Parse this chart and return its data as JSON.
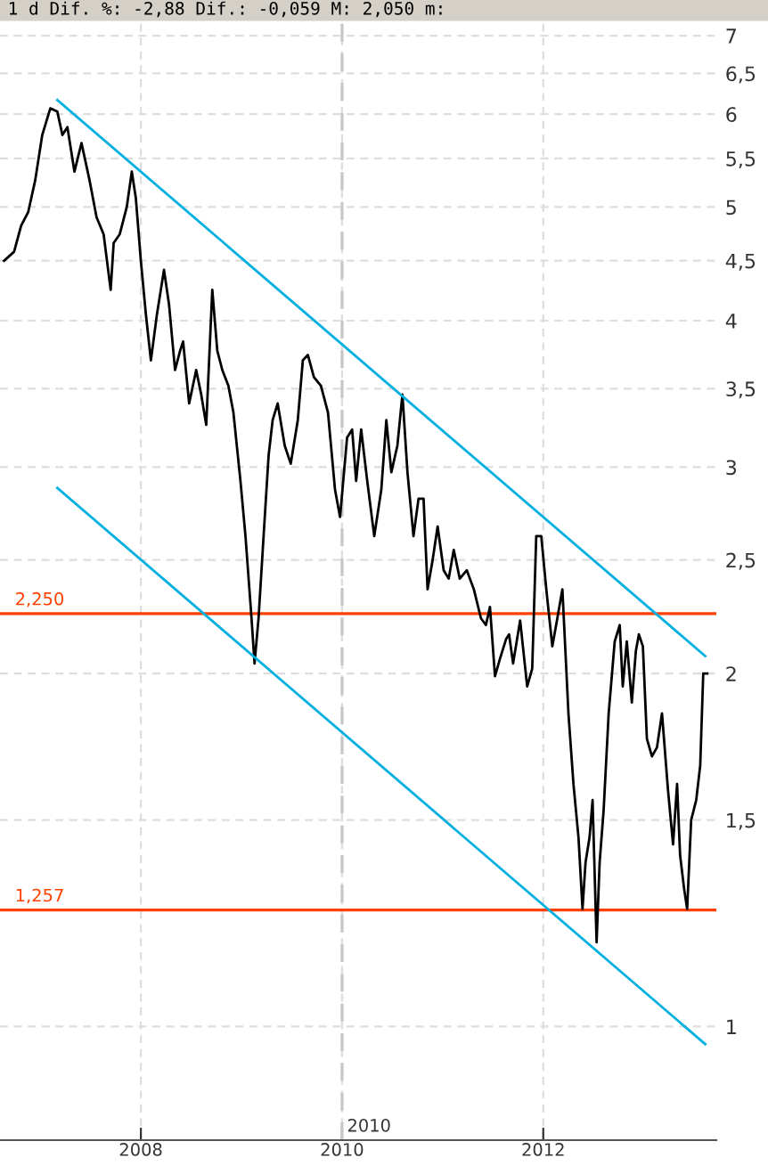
{
  "chart_data": {
    "type": "line",
    "title": "1 d Dif. %: -2,88 Dif.: -0,059 M: 2,050 m:",
    "log": "y",
    "grid": true,
    "legend": false,
    "marker": "none",
    "line_style": "solid",
    "xlim": [
      2006.6,
      2013.72
    ],
    "ylim": [
      0.8,
      7.2
    ],
    "xticks": [
      2008,
      2010,
      2012
    ],
    "yticks": [
      1,
      {
        "value": 1.5,
        "label": "1,5"
      },
      2,
      {
        "value": 2.5,
        "label": "2,5"
      },
      3,
      {
        "value": 3.5,
        "label": "3,5"
      },
      4,
      {
        "value": 4.5,
        "label": "4,5"
      },
      5,
      {
        "value": 5.5,
        "label": "5,5"
      },
      6,
      {
        "value": 6.5,
        "label": "6,5"
      },
      7
    ],
    "series": [
      {
        "color": "#000000",
        "x": [
          2006.64,
          2006.74,
          2006.81,
          2006.88,
          2006.95,
          2007.02,
          2007.1,
          2007.17,
          2007.22,
          2007.27,
          2007.34,
          2007.41,
          2007.49,
          2007.56,
          2007.63,
          2007.7,
          2007.73,
          2007.79,
          2007.86,
          2007.91,
          2007.95,
          2008.0,
          2008.05,
          2008.1,
          2008.16,
          2008.23,
          2008.28,
          2008.34,
          2008.39,
          2008.42,
          2008.48,
          2008.55,
          2008.6,
          2008.65,
          2008.71,
          2008.76,
          2008.81,
          2008.87,
          2008.92,
          2008.99,
          2009.04,
          2009.1,
          2009.13,
          2009.17,
          2009.22,
          2009.27,
          2009.31,
          2009.36,
          2009.43,
          2009.49,
          2009.56,
          2009.61,
          2009.66,
          2009.72,
          2009.79,
          2009.86,
          2009.93,
          2009.98,
          2010.05,
          2010.1,
          2010.14,
          2010.19,
          2010.25,
          2010.32,
          2010.39,
          2010.44,
          2010.49,
          2010.55,
          2010.6,
          2010.65,
          2010.71,
          2010.76,
          2010.81,
          2010.85,
          2010.9,
          2010.95,
          2011.01,
          2011.06,
          2011.11,
          2011.17,
          2011.24,
          2011.31,
          2011.38,
          2011.43,
          2011.47,
          2011.52,
          2011.57,
          2011.63,
          2011.66,
          2011.7,
          2011.77,
          2011.84,
          2011.89,
          2011.93,
          2011.98,
          2012.03,
          2012.09,
          2012.14,
          2012.19,
          2012.25,
          2012.3,
          2012.35,
          2012.39,
          2012.42,
          2012.46,
          2012.49,
          2012.53,
          2012.56,
          2012.6,
          2012.65,
          2012.71,
          2012.76,
          2012.79,
          2012.83,
          2012.88,
          2012.92,
          2012.95,
          2012.99,
          2013.03,
          2013.08,
          2013.13,
          2013.18,
          2013.24,
          2013.29,
          2013.33,
          2013.36,
          2013.4,
          2013.43,
          2013.47,
          2013.52,
          2013.56,
          2013.59,
          2013.63
        ],
        "values": [
          4.5,
          4.58,
          4.82,
          4.95,
          5.27,
          5.76,
          6.07,
          6.03,
          5.76,
          5.85,
          5.36,
          5.67,
          5.27,
          4.9,
          4.74,
          4.25,
          4.66,
          4.74,
          5.0,
          5.36,
          5.09,
          4.5,
          4.05,
          3.7,
          4.05,
          4.42,
          4.13,
          3.63,
          3.77,
          3.84,
          3.4,
          3.63,
          3.46,
          3.26,
          4.25,
          3.77,
          3.63,
          3.52,
          3.34,
          2.92,
          2.62,
          2.23,
          2.04,
          2.23,
          2.62,
          3.07,
          3.29,
          3.4,
          3.13,
          3.02,
          3.29,
          3.7,
          3.74,
          3.58,
          3.52,
          3.34,
          2.87,
          2.72,
          3.18,
          3.23,
          2.92,
          3.23,
          2.92,
          2.62,
          2.87,
          3.29,
          2.97,
          3.13,
          3.46,
          2.97,
          2.62,
          2.82,
          2.82,
          2.36,
          2.5,
          2.67,
          2.45,
          2.41,
          2.55,
          2.41,
          2.45,
          2.36,
          2.23,
          2.2,
          2.28,
          1.99,
          2.06,
          2.14,
          2.16,
          2.04,
          2.22,
          1.95,
          2.02,
          2.62,
          2.62,
          2.36,
          2.11,
          2.23,
          2.36,
          1.85,
          1.61,
          1.45,
          1.26,
          1.38,
          1.45,
          1.56,
          1.18,
          1.38,
          1.53,
          1.85,
          2.13,
          2.2,
          1.95,
          2.13,
          1.89,
          2.09,
          2.16,
          2.11,
          1.76,
          1.7,
          1.73,
          1.85,
          1.59,
          1.43,
          1.61,
          1.4,
          1.31,
          1.26,
          1.5,
          1.56,
          1.67,
          2.0,
          2.0
        ]
      },
      {
        "color": "#00b0e0",
        "x": [
          2007.17,
          2013.61
        ],
        "values": [
          6.17,
          2.07
        ]
      },
      {
        "color": "#00b0e0",
        "x": [
          2007.17,
          2013.61
        ],
        "values": [
          2.88,
          0.966
        ]
      }
    ],
    "ref_lines": [
      {
        "axis": "y",
        "value": 2.25,
        "label": "2,250",
        "color": "#ff4000",
        "line_style": "solid"
      },
      {
        "axis": "y",
        "value": 1.257,
        "label": "1,257",
        "color": "#ff4000",
        "line_style": "solid"
      },
      {
        "axis": "x",
        "value": 2010,
        "label": "2010",
        "color": "#c8c8c8",
        "line_style": "dashed"
      }
    ]
  }
}
